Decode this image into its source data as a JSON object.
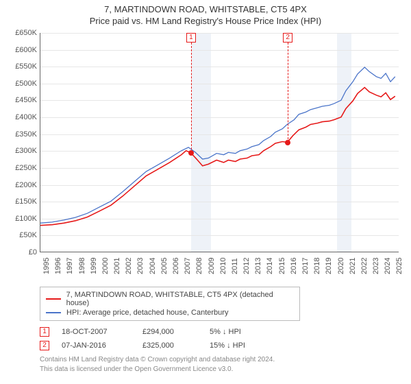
{
  "title_main": "7, MARTINDOWN ROAD, WHITSTABLE, CT5 4PX",
  "title_sub": "Price paid vs. HM Land Registry's House Price Index (HPI)",
  "chart": {
    "type": "line",
    "background_color": "#ffffff",
    "grid_color": "#e6e6e6",
    "xlim": [
      1995,
      2025.5
    ],
    "ylim": [
      0,
      650000
    ],
    "ytick_step": 50000,
    "ytick_labels": [
      "£0",
      "£50K",
      "£100K",
      "£150K",
      "£200K",
      "£250K",
      "£300K",
      "£350K",
      "£400K",
      "£450K",
      "£500K",
      "£550K",
      "£600K",
      "£650K"
    ],
    "xticks": [
      1995,
      1996,
      1997,
      1998,
      1999,
      2000,
      2001,
      2002,
      2003,
      2004,
      2005,
      2006,
      2007,
      2008,
      2009,
      2010,
      2011,
      2012,
      2013,
      2014,
      2015,
      2016,
      2017,
      2018,
      2019,
      2020,
      2021,
      2022,
      2023,
      2024,
      2025
    ],
    "bands": [
      {
        "start": 2007.8,
        "end": 2009.5,
        "color": "#eef2f8"
      },
      {
        "start": 2020.2,
        "end": 2021.4,
        "color": "#eef2f8"
      }
    ],
    "series": [
      {
        "name": "property",
        "label": "7, MARTINDOWN ROAD, WHITSTABLE, CT5 4PX (detached house)",
        "color": "#e61919",
        "width": 1.6,
        "points": [
          [
            1995,
            78000
          ],
          [
            1996,
            80000
          ],
          [
            1997,
            85000
          ],
          [
            1998,
            92000
          ],
          [
            1999,
            103000
          ],
          [
            2000,
            120000
          ],
          [
            2001,
            138000
          ],
          [
            2002,
            165000
          ],
          [
            2003,
            195000
          ],
          [
            2004,
            225000
          ],
          [
            2005,
            245000
          ],
          [
            2006,
            265000
          ],
          [
            2007,
            288000
          ],
          [
            2007.4,
            300000
          ],
          [
            2007.8,
            294000
          ],
          [
            2008.3,
            275000
          ],
          [
            2008.8,
            255000
          ],
          [
            2009.3,
            260000
          ],
          [
            2010,
            272000
          ],
          [
            2010.6,
            265000
          ],
          [
            2011,
            272000
          ],
          [
            2011.6,
            268000
          ],
          [
            2012,
            275000
          ],
          [
            2012.6,
            278000
          ],
          [
            2013,
            285000
          ],
          [
            2013.6,
            288000
          ],
          [
            2014,
            300000
          ],
          [
            2014.6,
            312000
          ],
          [
            2015,
            322000
          ],
          [
            2015.6,
            327000
          ],
          [
            2016.02,
            325000
          ],
          [
            2016.5,
            345000
          ],
          [
            2017,
            362000
          ],
          [
            2017.6,
            370000
          ],
          [
            2018,
            378000
          ],
          [
            2018.6,
            382000
          ],
          [
            2019,
            386000
          ],
          [
            2019.6,
            388000
          ],
          [
            2020,
            392000
          ],
          [
            2020.6,
            400000
          ],
          [
            2021,
            425000
          ],
          [
            2021.6,
            448000
          ],
          [
            2022,
            470000
          ],
          [
            2022.6,
            488000
          ],
          [
            2023,
            475000
          ],
          [
            2023.6,
            465000
          ],
          [
            2024,
            460000
          ],
          [
            2024.4,
            472000
          ],
          [
            2024.8,
            452000
          ],
          [
            2025.2,
            462000
          ]
        ]
      },
      {
        "name": "hpi",
        "label": "HPI: Average price, detached house, Canterbury",
        "color": "#4a74c9",
        "width": 1.3,
        "points": [
          [
            1995,
            85000
          ],
          [
            1996,
            88000
          ],
          [
            1997,
            94000
          ],
          [
            1998,
            102000
          ],
          [
            1999,
            114000
          ],
          [
            2000,
            132000
          ],
          [
            2001,
            150000
          ],
          [
            2002,
            178000
          ],
          [
            2003,
            208000
          ],
          [
            2004,
            238000
          ],
          [
            2005,
            258000
          ],
          [
            2006,
            278000
          ],
          [
            2007,
            300000
          ],
          [
            2007.6,
            310000
          ],
          [
            2008.2,
            295000
          ],
          [
            2008.8,
            275000
          ],
          [
            2009.3,
            278000
          ],
          [
            2010,
            292000
          ],
          [
            2010.6,
            288000
          ],
          [
            2011,
            295000
          ],
          [
            2011.6,
            292000
          ],
          [
            2012,
            300000
          ],
          [
            2012.6,
            305000
          ],
          [
            2013,
            312000
          ],
          [
            2013.6,
            318000
          ],
          [
            2014,
            330000
          ],
          [
            2014.6,
            342000
          ],
          [
            2015,
            355000
          ],
          [
            2015.6,
            365000
          ],
          [
            2016,
            378000
          ],
          [
            2016.6,
            392000
          ],
          [
            2017,
            408000
          ],
          [
            2017.6,
            415000
          ],
          [
            2018,
            422000
          ],
          [
            2018.6,
            428000
          ],
          [
            2019,
            432000
          ],
          [
            2019.6,
            435000
          ],
          [
            2020,
            440000
          ],
          [
            2020.6,
            450000
          ],
          [
            2021,
            478000
          ],
          [
            2021.6,
            505000
          ],
          [
            2022,
            528000
          ],
          [
            2022.6,
            548000
          ],
          [
            2023,
            535000
          ],
          [
            2023.6,
            520000
          ],
          [
            2024,
            515000
          ],
          [
            2024.4,
            530000
          ],
          [
            2024.8,
            505000
          ],
          [
            2025.2,
            520000
          ]
        ]
      }
    ],
    "markers": [
      {
        "id": "1",
        "x": 2007.8,
        "y": 294000
      },
      {
        "id": "2",
        "x": 2016.02,
        "y": 325000
      }
    ]
  },
  "legend": {
    "items": [
      {
        "color": "#e61919",
        "label": "7, MARTINDOWN ROAD, WHITSTABLE, CT5 4PX (detached house)"
      },
      {
        "color": "#4a74c9",
        "label": "HPI: Average price, detached house, Canterbury"
      }
    ]
  },
  "events": [
    {
      "id": "1",
      "date": "18-OCT-2007",
      "price": "£294,000",
      "delta": "5% ↓ HPI"
    },
    {
      "id": "2",
      "date": "07-JAN-2016",
      "price": "£325,000",
      "delta": "15% ↓ HPI"
    }
  ],
  "footer_line1": "Contains HM Land Registry data © Crown copyright and database right 2024.",
  "footer_line2": "This data is licensed under the Open Government Licence v3.0."
}
